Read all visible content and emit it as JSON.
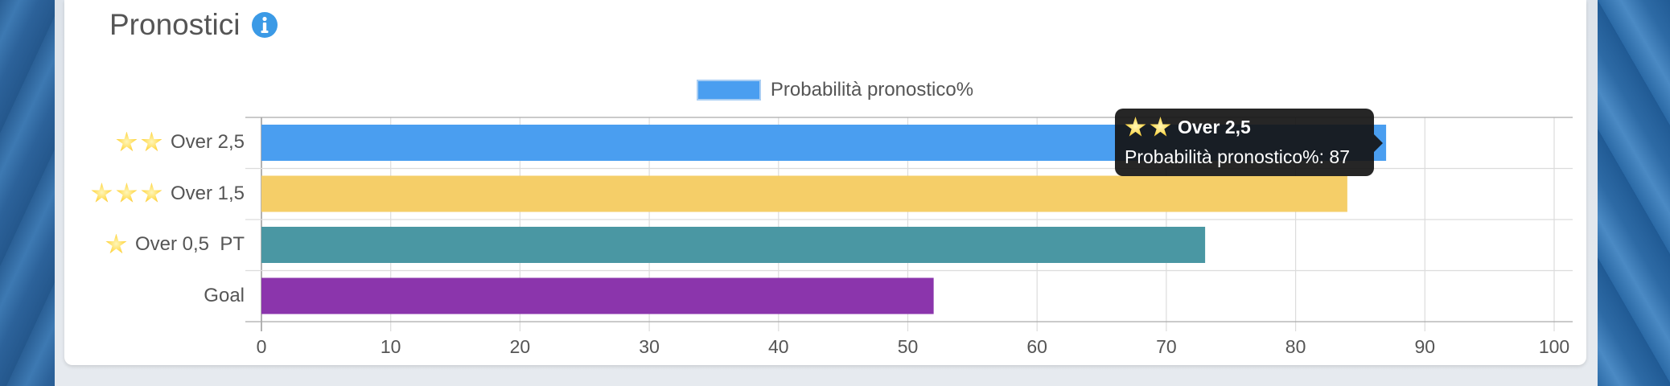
{
  "section": {
    "title": "Pronostici",
    "info_icon": "info-circle-icon"
  },
  "colors": {
    "legend": "#4a9ef0",
    "bars": [
      "#4a9ef0",
      "#f5ce68",
      "#4a97a3",
      "#8b35ac"
    ]
  },
  "chart_data": {
    "type": "bar",
    "orientation": "horizontal",
    "categories": [
      "Over 2,5",
      "Over 1,5",
      "Over 0,5  PT",
      "Goal"
    ],
    "category_stars": [
      2,
      3,
      1,
      0
    ],
    "series": [
      {
        "name": "Probabilità pronostico%",
        "values": [
          87,
          84,
          73,
          52
        ]
      }
    ],
    "xlim": [
      0,
      100
    ],
    "xticks": [
      "0",
      "10",
      "20",
      "30",
      "40",
      "50",
      "60",
      "70",
      "80",
      "90",
      "100"
    ],
    "grid": true,
    "legend_position": "top"
  },
  "tooltip": {
    "stars": 2,
    "title": "Over 2,5",
    "label": "Probabilità pronostico%",
    "value": "87"
  }
}
